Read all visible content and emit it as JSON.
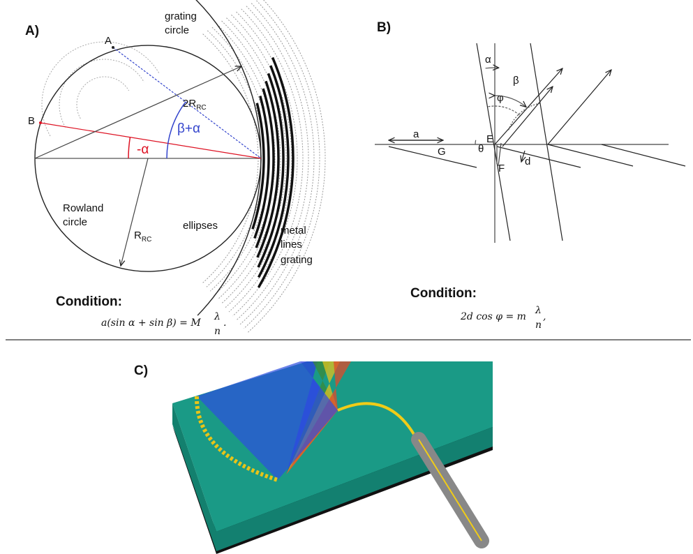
{
  "panel_a": {
    "label": "A)",
    "grating_circle": [
      "grating",
      "circle"
    ],
    "point_a": "A",
    "point_b": "B",
    "diameter": {
      "main": "2R",
      "sub": "RC"
    },
    "beta_alpha": "β+α",
    "minus_alpha": "-α",
    "rowland_circle": [
      "Rowland",
      "circle"
    ],
    "radius": {
      "main": "R",
      "sub": "RC"
    },
    "ellipses": "ellipses",
    "metal_lines_grating": [
      "metal",
      "lines",
      "grating"
    ],
    "condition": "Condition:",
    "formula": {
      "lhs": "a(sin α + sin β) = M",
      "numerator": "λ",
      "denominator": "n",
      "end": "."
    }
  },
  "panel_b": {
    "label": "B)",
    "alpha": "α",
    "beta": "β",
    "phi": "φ",
    "a": "a",
    "g": "G",
    "e": "E",
    "theta": "θ",
    "f": "F",
    "d": "d",
    "condition": "Condition:",
    "formula": {
      "lhs": "2d cos φ = m",
      "numerator": "λ",
      "denominator": "n",
      "end": ","
    }
  },
  "panel_c": {
    "label": "C)"
  }
}
